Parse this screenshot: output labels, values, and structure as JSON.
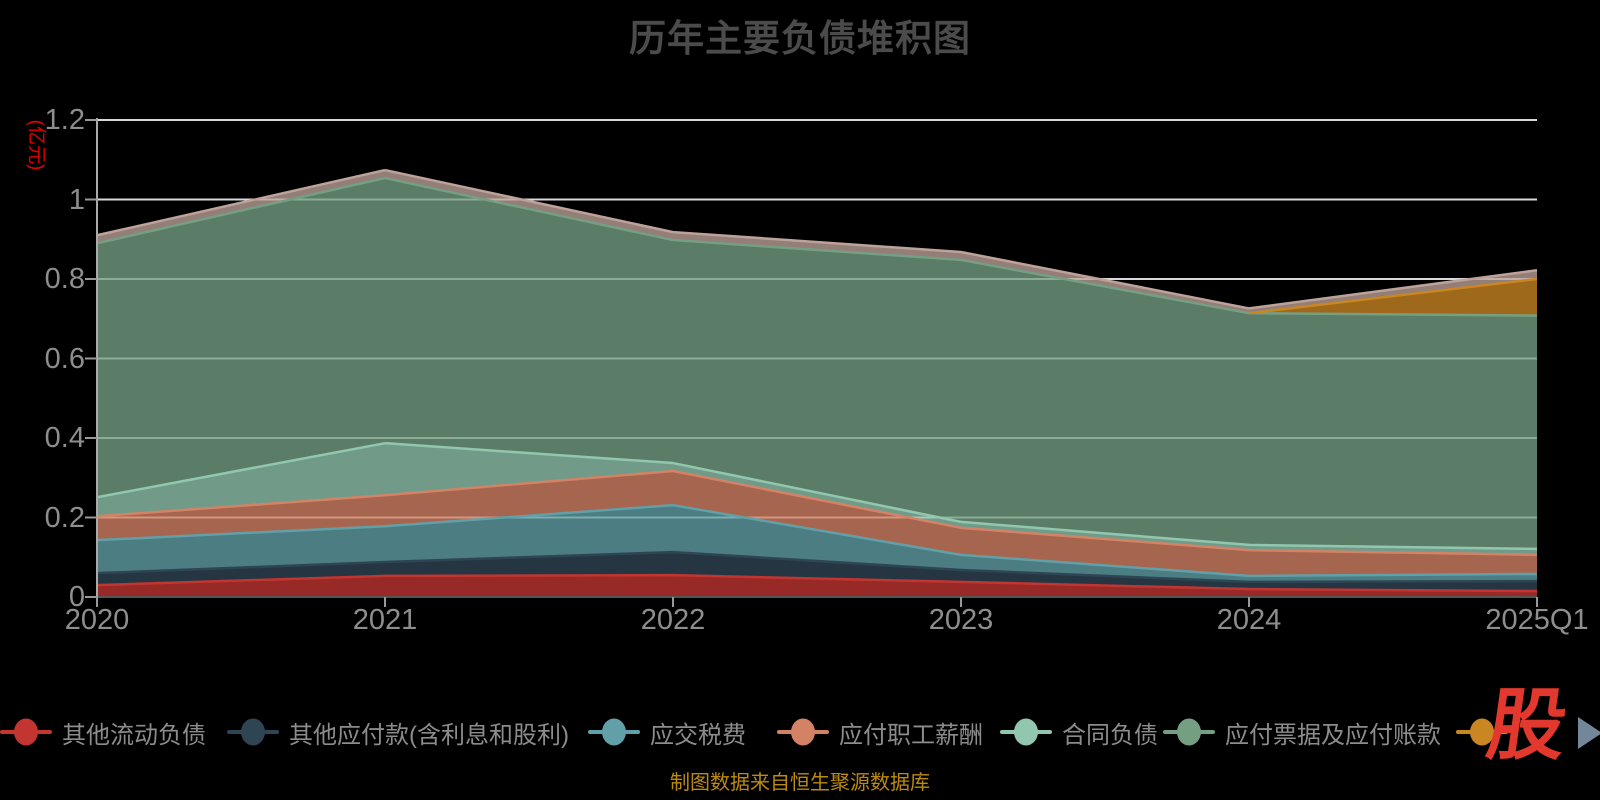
{
  "title": {
    "text": "历年主要负债堆积图"
  },
  "y_axis": {
    "unit_label": "(亿元)",
    "tick_values": [
      0,
      0.2,
      0.4,
      0.6,
      0.8,
      1,
      1.2
    ],
    "tick_labels": [
      "0",
      "0.2",
      "0.4",
      "0.6",
      "0.8",
      "1",
      "1.2"
    ]
  },
  "x_axis": {
    "categories": [
      "2020",
      "2021",
      "2022",
      "2023",
      "2024",
      "2025Q1"
    ]
  },
  "legend": {
    "items": [
      {
        "label": "其他流动负债",
        "color": "#c23531"
      },
      {
        "label": "其他应付款(含利息和股利)",
        "color": "#2f4554"
      },
      {
        "label": "应交税费",
        "color": "#61a0a8"
      },
      {
        "label": "应付职工薪酬",
        "color": "#d48265"
      },
      {
        "label": "合同负债",
        "color": "#91c7ae"
      },
      {
        "label": "应付票据及应付账款",
        "color": "#749f83"
      },
      {
        "label": "",
        "color": "#ca8622"
      }
    ]
  },
  "watermark": {
    "text": "股",
    "color": "#e2382e"
  },
  "legend_next_arrow": {
    "color": "#73879b"
  },
  "footer": {
    "text": "制图数据来自恒生聚源数据库",
    "color": "#bb8a10"
  },
  "colors": {
    "background": "#000000",
    "title": "#4b4b4b",
    "axis_label": "#8e8e8e",
    "axis_line": "#aaaaaa",
    "tick": "#999999",
    "grid_line": "#d9d9d9",
    "x_axis_line": "#555555",
    "legend_label": "#8c8c8c",
    "unit_label": "#e60000",
    "area_opacity": 0.78
  },
  "chart_data": {
    "type": "area",
    "stacked": true,
    "title": "历年主要负债堆积图",
    "unit": "亿元",
    "x": [
      "2020",
      "2021",
      "2022",
      "2023",
      "2024",
      "2025Q1"
    ],
    "ylim": [
      0,
      1.2
    ],
    "grid": true,
    "legend_position": "bottom",
    "series": [
      {
        "name": "其他流动负债",
        "color": "#c23531",
        "values": [
          0.03,
          0.053,
          0.055,
          0.038,
          0.02,
          0.015
        ]
      },
      {
        "name": "其他应付款(含利息和股利)",
        "color": "#2f4554",
        "values": [
          0.03,
          0.035,
          0.058,
          0.03,
          0.018,
          0.025
        ]
      },
      {
        "name": "应交税费",
        "color": "#61a0a8",
        "values": [
          0.083,
          0.09,
          0.118,
          0.038,
          0.015,
          0.018
        ]
      },
      {
        "name": "应付职工薪酬",
        "color": "#d48265",
        "values": [
          0.06,
          0.078,
          0.086,
          0.068,
          0.065,
          0.048
        ]
      },
      {
        "name": "合同负债",
        "color": "#91c7ae",
        "values": [
          0.048,
          0.131,
          0.02,
          0.015,
          0.013,
          0.015
        ]
      },
      {
        "name": "应付票据及应付账款",
        "color": "#749f83",
        "values": [
          0.639,
          0.667,
          0.561,
          0.659,
          0.583,
          0.587
        ]
      },
      {
        "name": "",
        "color": "#ca8622",
        "values": [
          0,
          0,
          0,
          0,
          0,
          0.092
        ]
      },
      {
        "name": "",
        "color": "#bda29a",
        "values": [
          0.02,
          0.02,
          0.02,
          0.02,
          0.012,
          0.022
        ]
      }
    ]
  }
}
